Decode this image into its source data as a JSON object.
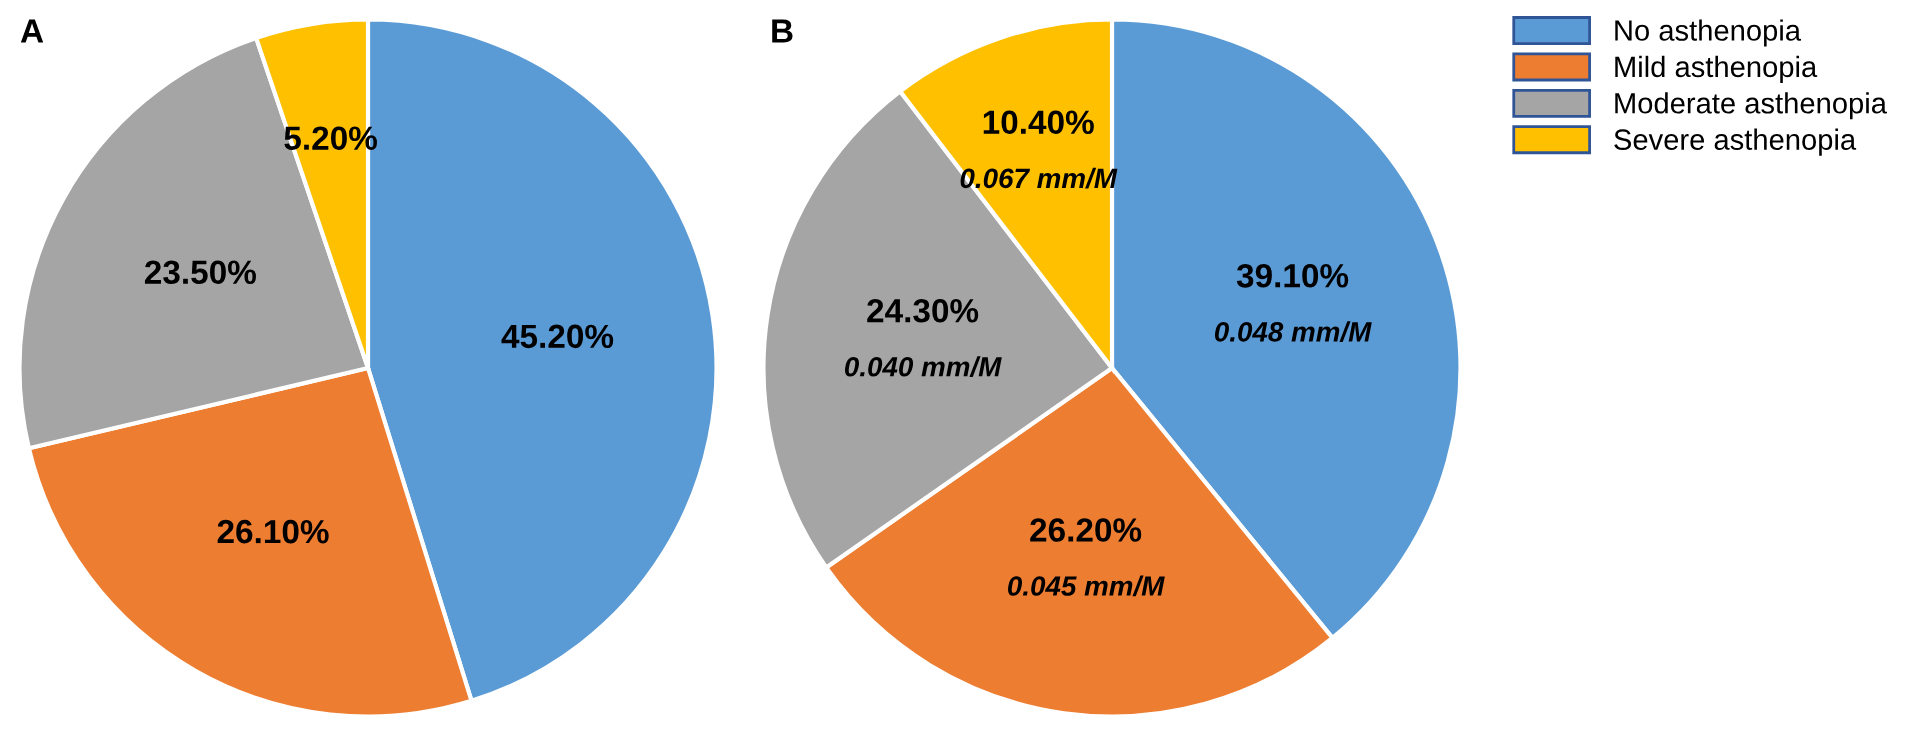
{
  "chart_data": [
    {
      "type": "pie",
      "title": "A",
      "categories": [
        "No asthenopia",
        "Mild asthenopia",
        "Moderate asthenopia",
        "Severe asthenopia"
      ],
      "values": [
        45.2,
        26.1,
        23.5,
        5.2
      ],
      "colors": [
        "#5b9bd5",
        "#ed7d31",
        "#a5a5a5",
        "#ffc000"
      ],
      "value_labels": [
        "45.20%",
        "26.10%",
        "23.50%",
        "5.20%"
      ],
      "legend": "top right"
    },
    {
      "type": "pie",
      "title": "B",
      "categories": [
        null,
        null,
        null,
        null
      ],
      "values": [
        39.1,
        26.2,
        24.3,
        10.4
      ],
      "colors": [
        "#5b9bd5",
        "#ed7d31",
        "#a5a5a5",
        "#ffc000"
      ],
      "value_labels": [
        "39.10%",
        "26.20%",
        "24.30%",
        "10.40%"
      ],
      "annotations": [
        "0.048 mm/M",
        "0.045 mm/M",
        "0.040 mm/M",
        "0.067 mm/M"
      ]
    }
  ]
}
